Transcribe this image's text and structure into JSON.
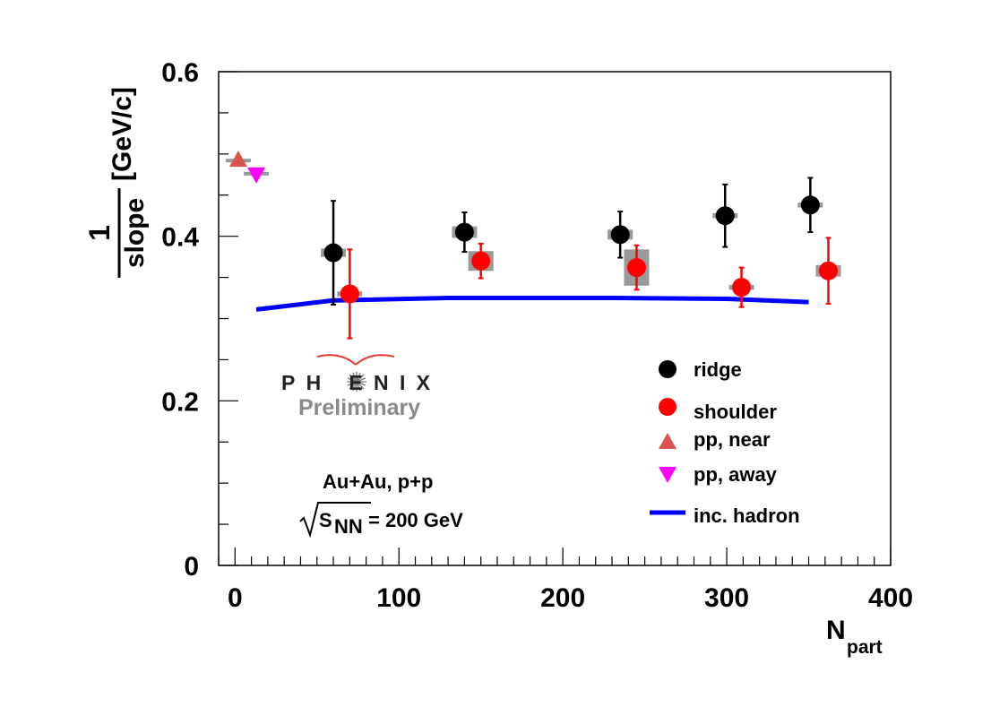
{
  "chart_data": {
    "type": "scatter",
    "title": "",
    "xlabel": "N",
    "xlabel_sub": "part",
    "ylabel_numerator": "1",
    "ylabel_denominator": "slope",
    "ylabel_unit": "[GeV/c]",
    "xlim": [
      -10,
      400
    ],
    "ylim": [
      0,
      0.6
    ],
    "xticks": [
      0,
      100,
      200,
      300,
      400
    ],
    "xtick_labels": [
      "0",
      "100",
      "200",
      "300",
      "400"
    ],
    "yticks": [
      0,
      0.2,
      0.4,
      0.6
    ],
    "ytick_labels": [
      "0",
      "0.2",
      "0.4",
      "0.6"
    ],
    "series": [
      {
        "name": "ridge",
        "marker": "circle",
        "color": "#000000",
        "points": [
          {
            "x": 60,
            "y": 0.38,
            "err": 0.063,
            "sys": 0.005
          },
          {
            "x": 140,
            "y": 0.405,
            "err": 0.024,
            "sys": 0.007
          },
          {
            "x": 235,
            "y": 0.402,
            "err": 0.028,
            "sys": 0.006
          },
          {
            "x": 299,
            "y": 0.425,
            "err": 0.038,
            "sys": 0.003
          },
          {
            "x": 351,
            "y": 0.438,
            "err": 0.033,
            "sys": 0.003
          }
        ]
      },
      {
        "name": "shoulder",
        "marker": "circle",
        "color": "#ff0000",
        "points": [
          {
            "x": 70,
            "y": 0.33,
            "err": 0.054,
            "sys": 0.003
          },
          {
            "x": 150,
            "y": 0.37,
            "err": 0.021,
            "sys": 0.012
          },
          {
            "x": 245,
            "y": 0.362,
            "err": 0.027,
            "sys": 0.022
          },
          {
            "x": 309,
            "y": 0.338,
            "err": 0.024,
            "sys": 0.003
          },
          {
            "x": 362,
            "y": 0.358,
            "err": 0.04,
            "sys": 0.007
          }
        ]
      },
      {
        "name": "pp, near",
        "marker": "triangle-up",
        "color": "#d9534f",
        "points": [
          {
            "x": 2,
            "y": 0.492,
            "err": 0,
            "sys": 0.002
          }
        ]
      },
      {
        "name": "pp, away",
        "marker": "triangle-down",
        "color": "#ff00ff",
        "points": [
          {
            "x": 13,
            "y": 0.476,
            "err": 0,
            "sys": 0.002
          }
        ]
      },
      {
        "name": "inc. hadron",
        "marker": "line",
        "color": "#0000ff",
        "x": [
          13,
          60,
          130,
          230,
          300,
          350
        ],
        "y": [
          0.311,
          0.322,
          0.325,
          0.325,
          0.324,
          0.32
        ]
      }
    ],
    "legend_position": "bottom-right",
    "annotations": {
      "logo": "PH ENIX",
      "preliminary": "Preliminary",
      "system": "Au+Au, p+p",
      "sqrt_symbol": "S",
      "sqrt_sub": "NN",
      "energy": "= 200 GeV"
    }
  }
}
